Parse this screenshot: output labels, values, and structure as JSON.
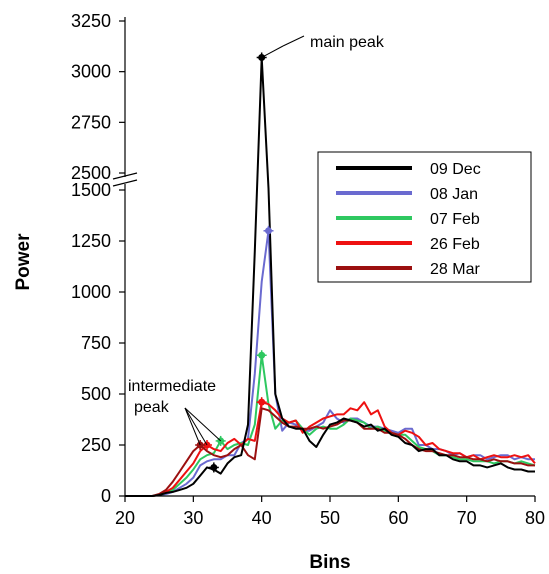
{
  "chart_data": {
    "type": "line",
    "xlabel": "Bins",
    "ylabel": "Power",
    "xlim": [
      20,
      80
    ],
    "x_ticks": [
      20,
      30,
      40,
      50,
      60,
      70,
      80
    ],
    "y_ticks_lower": [
      0,
      250,
      500,
      750,
      1000,
      1250,
      1500
    ],
    "y_ticks_upper": [
      2500,
      2750,
      3000,
      3250
    ],
    "y_axis_break": [
      1550,
      2450
    ],
    "legend_placement": "right",
    "grid": false,
    "annotations": {
      "main_peak": "main peak",
      "intermediate_peak_line1": "intermediate",
      "intermediate_peak_line2": "peak"
    },
    "x": [
      20,
      21,
      22,
      23,
      24,
      25,
      26,
      27,
      28,
      29,
      30,
      31,
      32,
      33,
      34,
      35,
      36,
      37,
      38,
      39,
      40,
      41,
      42,
      43,
      44,
      45,
      46,
      47,
      48,
      49,
      50,
      51,
      52,
      53,
      54,
      55,
      56,
      57,
      58,
      59,
      60,
      61,
      62,
      63,
      64,
      65,
      66,
      67,
      68,
      69,
      70,
      71,
      72,
      73,
      74,
      75,
      76,
      77,
      78,
      79,
      80
    ],
    "series": [
      {
        "name": "09 Dec",
        "color": "#000000",
        "values": [
          0,
          0,
          0,
          0,
          0,
          5,
          15,
          20,
          30,
          40,
          60,
          100,
          140,
          130,
          110,
          160,
          190,
          200,
          350,
          1200,
          3070,
          1600,
          500,
          380,
          340,
          330,
          330,
          270,
          240,
          300,
          350,
          360,
          380,
          370,
          360,
          340,
          350,
          320,
          330,
          300,
          290,
          260,
          250,
          220,
          230,
          230,
          200,
          200,
          180,
          170,
          170,
          150,
          150,
          140,
          150,
          160,
          140,
          130,
          130,
          120,
          120
        ],
        "markers": [
          {
            "x": 40,
            "y": 3070
          },
          {
            "x": 33,
            "y": 140
          }
        ]
      },
      {
        "name": "08 Jan",
        "color": "#6a6ad0",
        "values": [
          0,
          0,
          0,
          0,
          0,
          5,
          10,
          20,
          40,
          60,
          90,
          150,
          170,
          180,
          180,
          200,
          200,
          260,
          280,
          600,
          1050,
          1300,
          500,
          320,
          360,
          350,
          320,
          320,
          340,
          360,
          420,
          380,
          360,
          380,
          380,
          360,
          340,
          340,
          330,
          320,
          310,
          330,
          330,
          250,
          250,
          230,
          230,
          220,
          200,
          210,
          190,
          200,
          200,
          180,
          190,
          200,
          200,
          180,
          190,
          180,
          180
        ],
        "markers": [
          {
            "x": 41,
            "y": 1300
          }
        ]
      },
      {
        "name": "07 Feb",
        "color": "#2ec860",
        "values": [
          0,
          0,
          0,
          0,
          0,
          5,
          15,
          30,
          60,
          90,
          130,
          180,
          200,
          210,
          270,
          230,
          250,
          260,
          250,
          350,
          690,
          450,
          330,
          370,
          360,
          370,
          330,
          300,
          330,
          340,
          330,
          330,
          350,
          380,
          370,
          360,
          330,
          340,
          320,
          310,
          300,
          300,
          270,
          240,
          230,
          220,
          200,
          200,
          190,
          180,
          180,
          170,
          170,
          170,
          160,
          170,
          170,
          160,
          170,
          160,
          150
        ],
        "markers": [
          {
            "x": 40,
            "y": 690
          },
          {
            "x": 34,
            "y": 270
          }
        ]
      },
      {
        "name": "26 Feb",
        "color": "#ee1111",
        "values": [
          0,
          0,
          0,
          0,
          0,
          5,
          20,
          40,
          80,
          120,
          160,
          220,
          250,
          230,
          220,
          260,
          280,
          250,
          280,
          270,
          460,
          450,
          420,
          380,
          360,
          370,
          310,
          340,
          360,
          380,
          390,
          400,
          400,
          430,
          420,
          460,
          400,
          420,
          340,
          310,
          300,
          320,
          310,
          290,
          250,
          260,
          230,
          220,
          210,
          210,
          190,
          200,
          180,
          190,
          200,
          190,
          190,
          200,
          190,
          200,
          160
        ],
        "markers": [
          {
            "x": 40,
            "y": 460
          },
          {
            "x": 32,
            "y": 250
          }
        ]
      },
      {
        "name": "28 Mar",
        "color": "#9b1010",
        "values": [
          0,
          0,
          0,
          0,
          0,
          10,
          30,
          70,
          120,
          170,
          220,
          250,
          220,
          200,
          190,
          200,
          230,
          250,
          200,
          180,
          430,
          420,
          390,
          360,
          340,
          340,
          330,
          330,
          340,
          330,
          340,
          350,
          370,
          370,
          360,
          330,
          330,
          330,
          310,
          310,
          300,
          280,
          250,
          230,
          220,
          220,
          210,
          200,
          200,
          190,
          190,
          180,
          180,
          170,
          180,
          170,
          170,
          160,
          160,
          150,
          150
        ],
        "markers": [
          {
            "x": 31,
            "y": 250
          }
        ]
      }
    ]
  }
}
